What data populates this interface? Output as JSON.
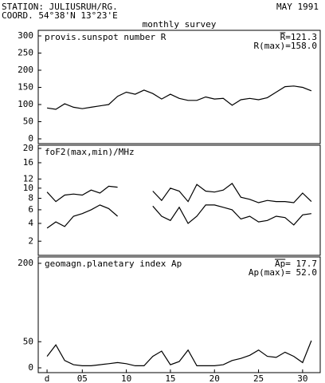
{
  "header": {
    "station": "STATION: JULIUSRUH/RG.",
    "coord": "COORD. 54°38'N 13°23'E",
    "date": "MAY 1991",
    "subtitle": "monthly survey"
  },
  "chart_data": [
    {
      "type": "line",
      "title": "provis.sunspot number R",
      "annotations": [
        "R=121.3",
        "R(max)=158.0"
      ],
      "x": [
        1,
        2,
        3,
        4,
        5,
        6,
        7,
        8,
        9,
        10,
        11,
        12,
        13,
        14,
        15,
        16,
        17,
        18,
        19,
        20,
        21,
        22,
        23,
        24,
        25,
        26,
        27,
        28,
        29,
        30,
        31
      ],
      "series": [
        {
          "color": "#000000",
          "values": [
            90,
            86,
            102,
            92,
            88,
            92,
            96,
            100,
            124,
            136,
            130,
            142,
            132,
            116,
            130,
            118,
            112,
            112,
            122,
            116,
            118,
            98,
            114,
            118,
            114,
            120,
            136,
            152,
            154,
            150,
            140
          ]
        }
      ],
      "xlim": [
        0,
        32
      ],
      "ylim": [
        0,
        300
      ],
      "yticks": [
        0,
        50,
        100,
        150,
        200,
        250,
        300
      ]
    },
    {
      "type": "line",
      "title": "foF2(max,min)/MHz",
      "yscale": "sqrt",
      "x": [
        1,
        2,
        3,
        4,
        5,
        6,
        7,
        8,
        9,
        10,
        11,
        12,
        13,
        14,
        15,
        16,
        17,
        18,
        19,
        20,
        21,
        22,
        23,
        24,
        25,
        26,
        27,
        28,
        29,
        30,
        31
      ],
      "series": [
        {
          "color": "#000000",
          "values": [
            9.2,
            7.4,
            8.6,
            8.8,
            8.6,
            9.6,
            9.0,
            10.4,
            10.2,
            null,
            null,
            null,
            9.4,
            7.6,
            10.0,
            9.4,
            7.4,
            10.8,
            9.4,
            9.2,
            9.6,
            11.0,
            8.2,
            7.8,
            7.2,
            7.6,
            7.4,
            7.4,
            7.2,
            9.0,
            7.4
          ]
        },
        {
          "color": "#000000",
          "values": [
            3.4,
            4.2,
            3.6,
            5.0,
            5.4,
            6.0,
            6.8,
            6.2,
            5.0,
            null,
            null,
            null,
            6.6,
            5.0,
            4.4,
            6.4,
            4.0,
            5.0,
            6.8,
            6.8,
            6.4,
            6.0,
            4.6,
            5.0,
            4.2,
            4.4,
            5.0,
            4.8,
            3.8,
            5.2,
            5.4
          ]
        }
      ],
      "xlim": [
        0,
        32
      ],
      "ylim": [
        1,
        20
      ],
      "yticks": [
        2,
        4,
        6,
        8,
        10,
        12,
        16,
        20
      ]
    },
    {
      "type": "line",
      "title": "geomagn.planetary index Ap",
      "annotations": [
        "Ap= 17.7",
        "Ap(max)= 52.0"
      ],
      "x": [
        1,
        2,
        3,
        4,
        5,
        6,
        7,
        8,
        9,
        10,
        11,
        12,
        13,
        14,
        15,
        16,
        17,
        18,
        19,
        20,
        21,
        22,
        23,
        24,
        25,
        26,
        27,
        28,
        29,
        30,
        31
      ],
      "series": [
        {
          "color": "#000000",
          "values": [
            22,
            44,
            14,
            6,
            4,
            4,
            6,
            8,
            10,
            8,
            4,
            4,
            22,
            32,
            6,
            12,
            34,
            4,
            4,
            4,
            6,
            14,
            18,
            24,
            34,
            22,
            20,
            30,
            22,
            10,
            52
          ]
        }
      ],
      "xlim": [
        0,
        32
      ],
      "ylim": [
        0,
        200
      ],
      "yticks": [
        0,
        50,
        200
      ],
      "xticks": [
        {
          "value": 1,
          "label": "d"
        },
        {
          "value": 5,
          "label": "05"
        },
        10,
        15,
        20,
        25,
        30
      ]
    }
  ]
}
